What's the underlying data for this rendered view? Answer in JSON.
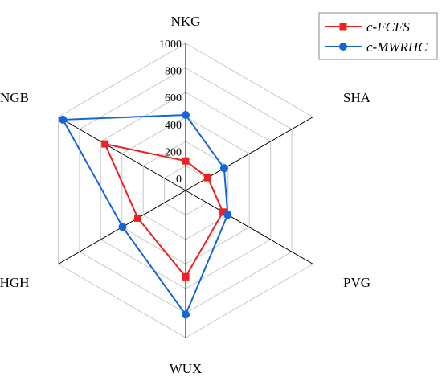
{
  "chart_data": {
    "type": "radar",
    "axes": [
      "NKG",
      "SHA",
      "PVG",
      "WUX",
      "HGH",
      "NGB"
    ],
    "range": [
      0,
      1000
    ],
    "ticks": [
      "0",
      "200",
      "400",
      "600",
      "800",
      "1000"
    ],
    "grid": true,
    "legend_position": "top-right",
    "series": [
      {
        "name": "c-FCFS",
        "color": "#ee2020",
        "marker": "square",
        "values": [
          130,
          100,
          230,
          550,
          320,
          600
        ]
      },
      {
        "name": "c-MWRHC",
        "color": "#1565d8",
        "marker": "circle",
        "values": [
          470,
          240,
          270,
          830,
          450,
          960
        ]
      }
    ]
  }
}
